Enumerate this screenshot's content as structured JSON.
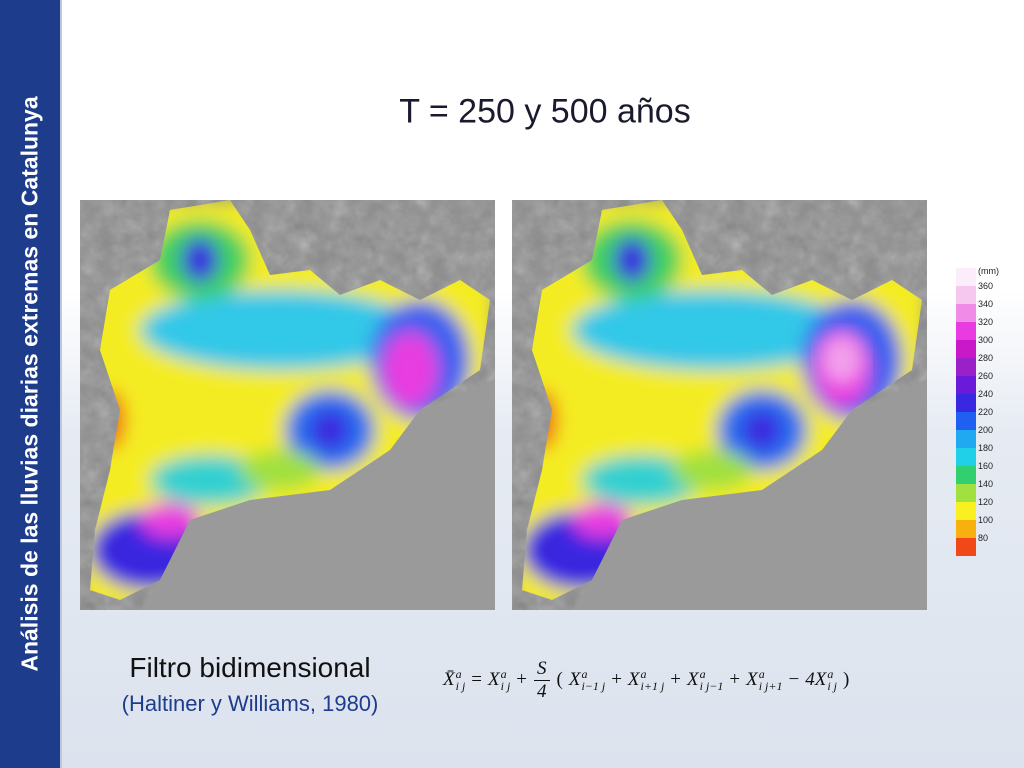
{
  "sidebar": "Análisis de las lluvias diarias extremas en Catalunya",
  "title": "T = 250 y 500 años",
  "legend": {
    "unit": "(mm)",
    "items": [
      {
        "label": 360,
        "color": "#f6c8f0"
      },
      {
        "label": 340,
        "color": "#f08ce8"
      },
      {
        "label": 320,
        "color": "#e83ce0"
      },
      {
        "label": 300,
        "color": "#c818c8"
      },
      {
        "label": 280,
        "color": "#9a20c8"
      },
      {
        "label": 260,
        "color": "#6a1ad8"
      },
      {
        "label": 240,
        "color": "#3a28e0"
      },
      {
        "label": 220,
        "color": "#2060f0"
      },
      {
        "label": 200,
        "color": "#20a8f0"
      },
      {
        "label": 180,
        "color": "#20d0e8"
      },
      {
        "label": 160,
        "color": "#30d070"
      },
      {
        "label": 140,
        "color": "#a0e040"
      },
      {
        "label": 120,
        "color": "#f8f020"
      },
      {
        "label": 100,
        "color": "#f8b010"
      },
      {
        "label": 80,
        "color": "#f04818"
      }
    ]
  },
  "filter": {
    "name": "Filtro bidimensional",
    "reference": "(Haltiner y Williams, 1980)"
  },
  "formula": [
    {
      "t": "X̄",
      "sup": "a",
      "sub": "i j"
    },
    {
      "op": "="
    },
    {
      "t": "X",
      "sup": "a",
      "sub": "i j"
    },
    {
      "op": "+"
    },
    {
      "num": "S",
      "den": "4"
    },
    {
      "op": "("
    },
    {
      "t": "X",
      "sup": "a",
      "sub": "i−1 j"
    },
    {
      "op": "+"
    },
    {
      "t": "X",
      "sup": "a",
      "sub": "i+1 j"
    },
    {
      "op": "+"
    },
    {
      "t": "X",
      "sup": "a",
      "sub": "i j−1"
    },
    {
      "op": "+"
    },
    {
      "t": "X",
      "sup": "a",
      "sub": "i j+1"
    },
    {
      "op": "−"
    },
    {
      "t": "4X",
      "sup": "a",
      "sub": "i j"
    },
    {
      "op": ")"
    }
  ]
}
